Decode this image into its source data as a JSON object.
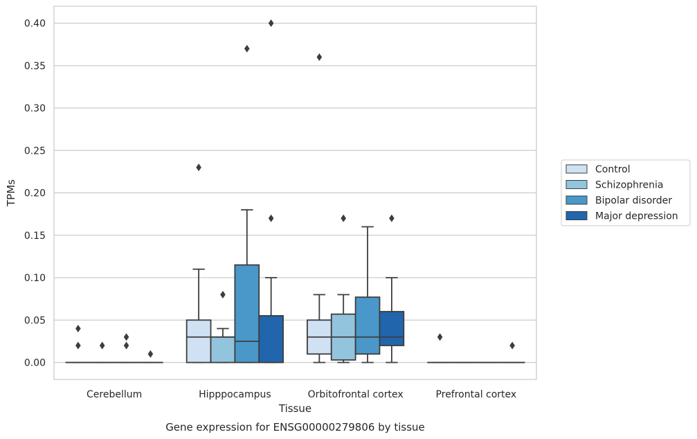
{
  "chart_data": {
    "type": "box",
    "title": "",
    "caption": "Gene expression for ENSG00000279806 by tissue",
    "xlabel": "Tissue",
    "ylabel": "TPMs",
    "ylim": [
      -0.02,
      0.42
    ],
    "yticks": [
      "0.00",
      "0.05",
      "0.10",
      "0.15",
      "0.20",
      "0.25",
      "0.30",
      "0.35",
      "0.40"
    ],
    "ytick_values": [
      0,
      0.05,
      0.1,
      0.15,
      0.2,
      0.25,
      0.3,
      0.35,
      0.4
    ],
    "grid": "horizontal",
    "legend_position": "right",
    "categories": [
      "Cerebellum",
      "Hipppocampus",
      "Orbitofrontal cortex",
      "Prefrontal cortex"
    ],
    "series": [
      {
        "name": "Control",
        "color": "#cfe1f2",
        "boxes": [
          {
            "q1": 0,
            "median": 0,
            "q3": 0,
            "whisker_low": 0,
            "whisker_high": 0,
            "outliers": [
              0.04,
              0.02
            ]
          },
          {
            "q1": 0,
            "median": 0.03,
            "q3": 0.05,
            "whisker_low": 0,
            "whisker_high": 0.11,
            "outliers": [
              0.23
            ]
          },
          {
            "q1": 0.01,
            "median": 0.03,
            "q3": 0.05,
            "whisker_low": 0,
            "whisker_high": 0.08,
            "outliers": [
              0.36
            ]
          },
          {
            "q1": 0,
            "median": 0,
            "q3": 0,
            "whisker_low": 0,
            "whisker_high": 0,
            "outliers": [
              0.03
            ]
          }
        ]
      },
      {
        "name": "Schizophrenia",
        "color": "#93c4de",
        "boxes": [
          {
            "q1": 0,
            "median": 0,
            "q3": 0,
            "whisker_low": 0,
            "whisker_high": 0,
            "outliers": [
              0.02
            ]
          },
          {
            "q1": 0,
            "median": 0.03,
            "q3": 0.03,
            "whisker_low": 0,
            "whisker_high": 0.04,
            "outliers": [
              0.08
            ]
          },
          {
            "q1": 0.003,
            "median": 0.03,
            "q3": 0.057,
            "whisker_low": 0,
            "whisker_high": 0.08,
            "outliers": [
              0.17
            ]
          },
          {
            "q1": 0,
            "median": 0,
            "q3": 0,
            "whisker_low": 0,
            "whisker_high": 0,
            "outliers": []
          }
        ]
      },
      {
        "name": "Bipolar disorder",
        "color": "#4a98c9",
        "boxes": [
          {
            "q1": 0,
            "median": 0,
            "q3": 0,
            "whisker_low": 0,
            "whisker_high": 0,
            "outliers": [
              0.03,
              0.02
            ]
          },
          {
            "q1": 0,
            "median": 0.025,
            "q3": 0.115,
            "whisker_low": 0,
            "whisker_high": 0.18,
            "outliers": [
              0.37
            ]
          },
          {
            "q1": 0.01,
            "median": 0.03,
            "q3": 0.077,
            "whisker_low": 0,
            "whisker_high": 0.16,
            "outliers": []
          },
          {
            "q1": 0,
            "median": 0,
            "q3": 0,
            "whisker_low": 0,
            "whisker_high": 0,
            "outliers": []
          }
        ]
      },
      {
        "name": "Major depression",
        "color": "#2166ac",
        "boxes": [
          {
            "q1": 0,
            "median": 0,
            "q3": 0,
            "whisker_low": 0,
            "whisker_high": 0,
            "outliers": [
              0.01
            ]
          },
          {
            "q1": 0,
            "median": 0.055,
            "q3": 0.055,
            "whisker_low": 0,
            "whisker_high": 0.1,
            "outliers": [
              0.4,
              0.17
            ]
          },
          {
            "q1": 0.02,
            "median": 0.03,
            "q3": 0.06,
            "whisker_low": 0,
            "whisker_high": 0.1,
            "outliers": [
              0.17
            ]
          },
          {
            "q1": 0,
            "median": 0,
            "q3": 0,
            "whisker_low": 0,
            "whisker_high": 0,
            "outliers": [
              0.02
            ]
          }
        ]
      }
    ]
  }
}
